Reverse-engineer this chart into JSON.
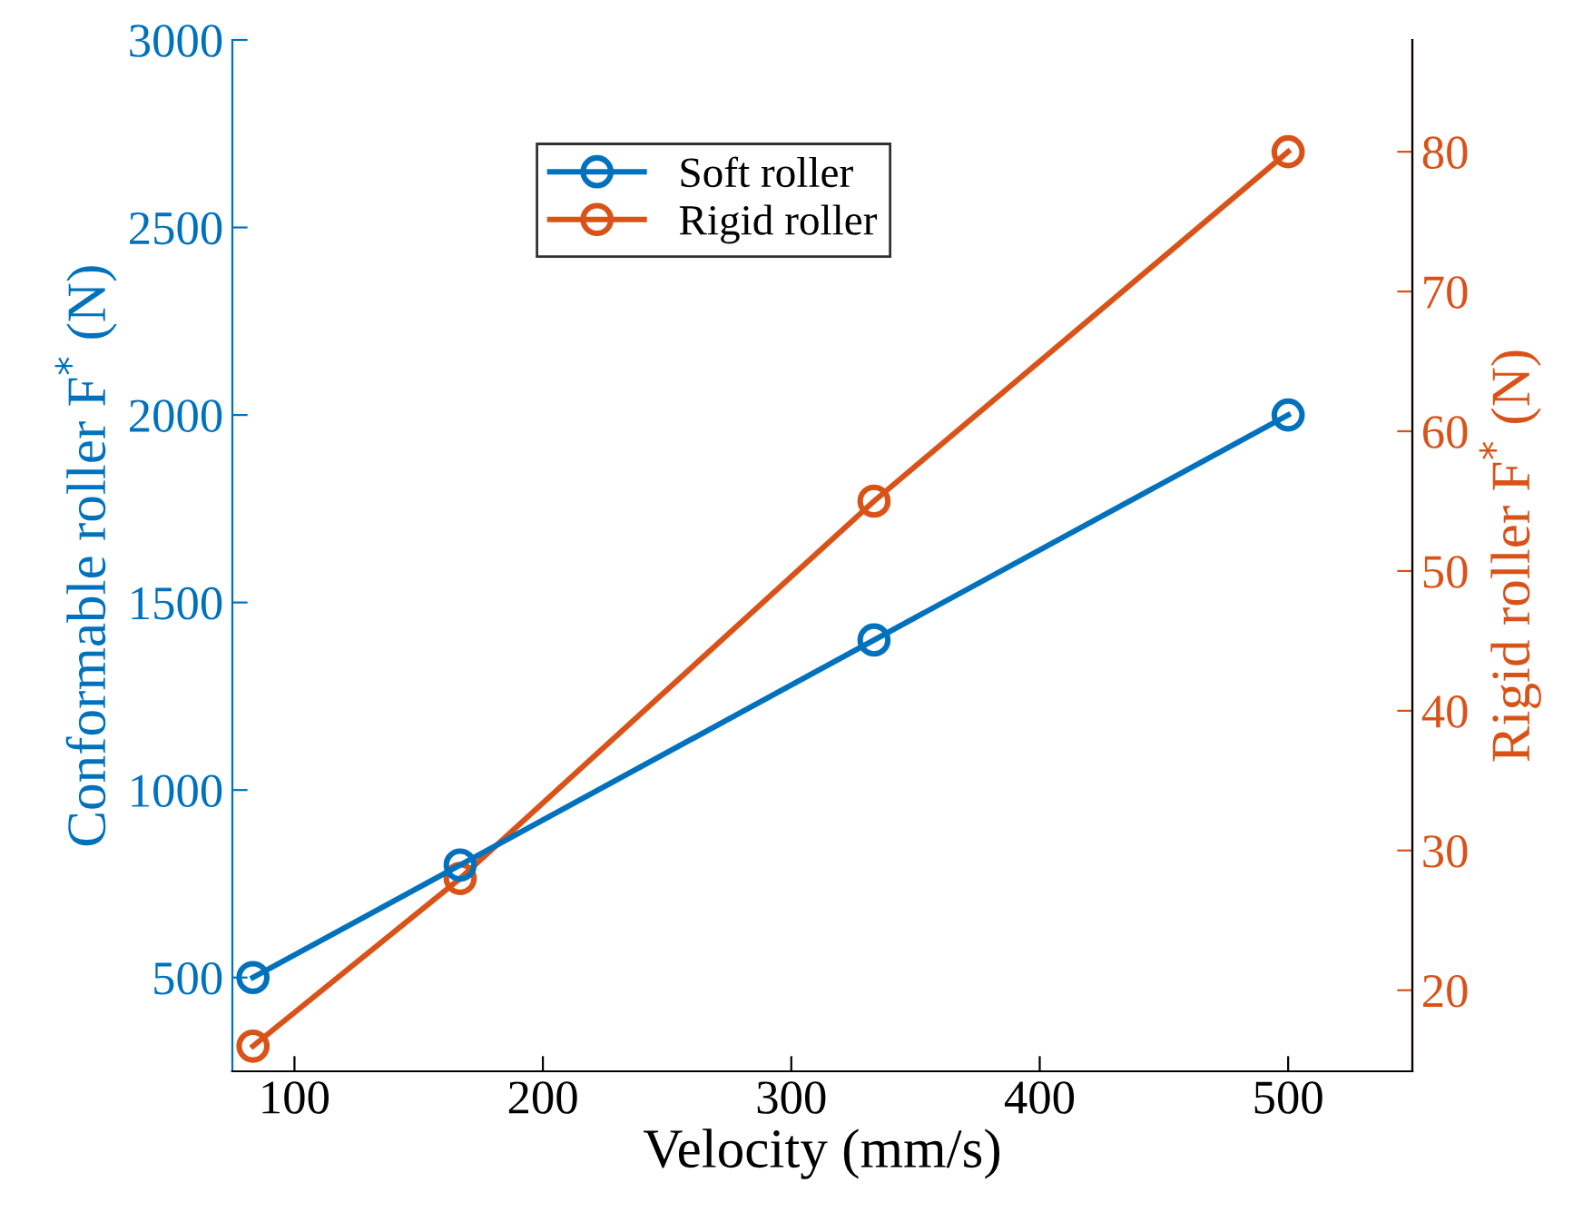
{
  "chart_data": {
    "type": "line",
    "xlabel": "Velocity (mm/s)",
    "ylabel": "Conformable roller F$^{*}$ (N)",
    "y2label": "Rigid roller F$^{*}$ (N)",
    "x": [
      83.3,
      166.7,
      333.3,
      500
    ],
    "series": [
      {
        "name": "Soft roller",
        "color": "#0072bd",
        "values": [
          500,
          800,
          1400,
          2000
        ]
      },
      {
        "name": "Rigid roller",
        "color": "#d95319",
        "values": [
          16,
          28,
          55,
          80
        ],
        "axis": "y2"
      }
    ],
    "xlim": [
      75,
      550
    ],
    "xticks": [
      100,
      200,
      300,
      400,
      500
    ],
    "ylim": [
      250,
      3000
    ],
    "yticks": [
      500,
      1000,
      1500,
      2000,
      2500,
      3000
    ],
    "y2lim": [
      14.2,
      88
    ],
    "y2ticks": [
      20,
      30,
      40,
      50,
      60,
      70,
      80
    ],
    "marker": "circle",
    "line_style": "solid",
    "legend": "top",
    "grid": false
  }
}
